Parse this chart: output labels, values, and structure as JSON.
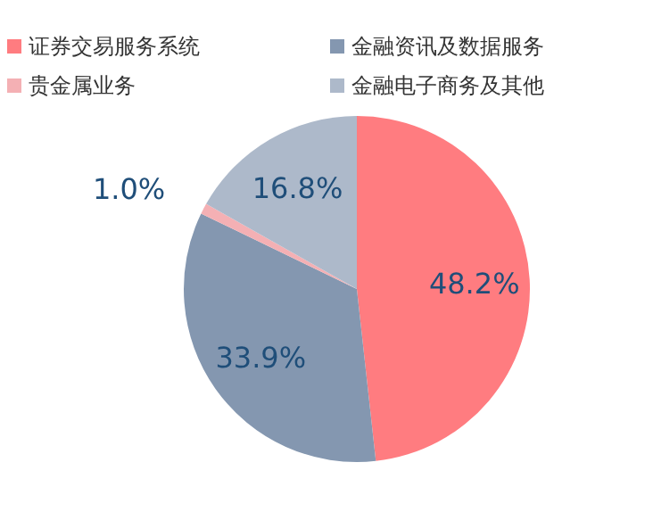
{
  "chart_data": {
    "type": "pie",
    "categories": [
      "证券交易服务系统",
      "金融资讯及数据服务",
      "贵金属业务",
      "金融电子商务及其他"
    ],
    "values": [
      48.2,
      33.9,
      1.0,
      16.8
    ],
    "colors": [
      "#ff7c80",
      "#8497b0",
      "#f4b0b4",
      "#adb9ca"
    ],
    "value_labels": [
      "48.2%",
      "33.9%",
      "1.0%",
      "16.8%"
    ],
    "legend": "top"
  }
}
